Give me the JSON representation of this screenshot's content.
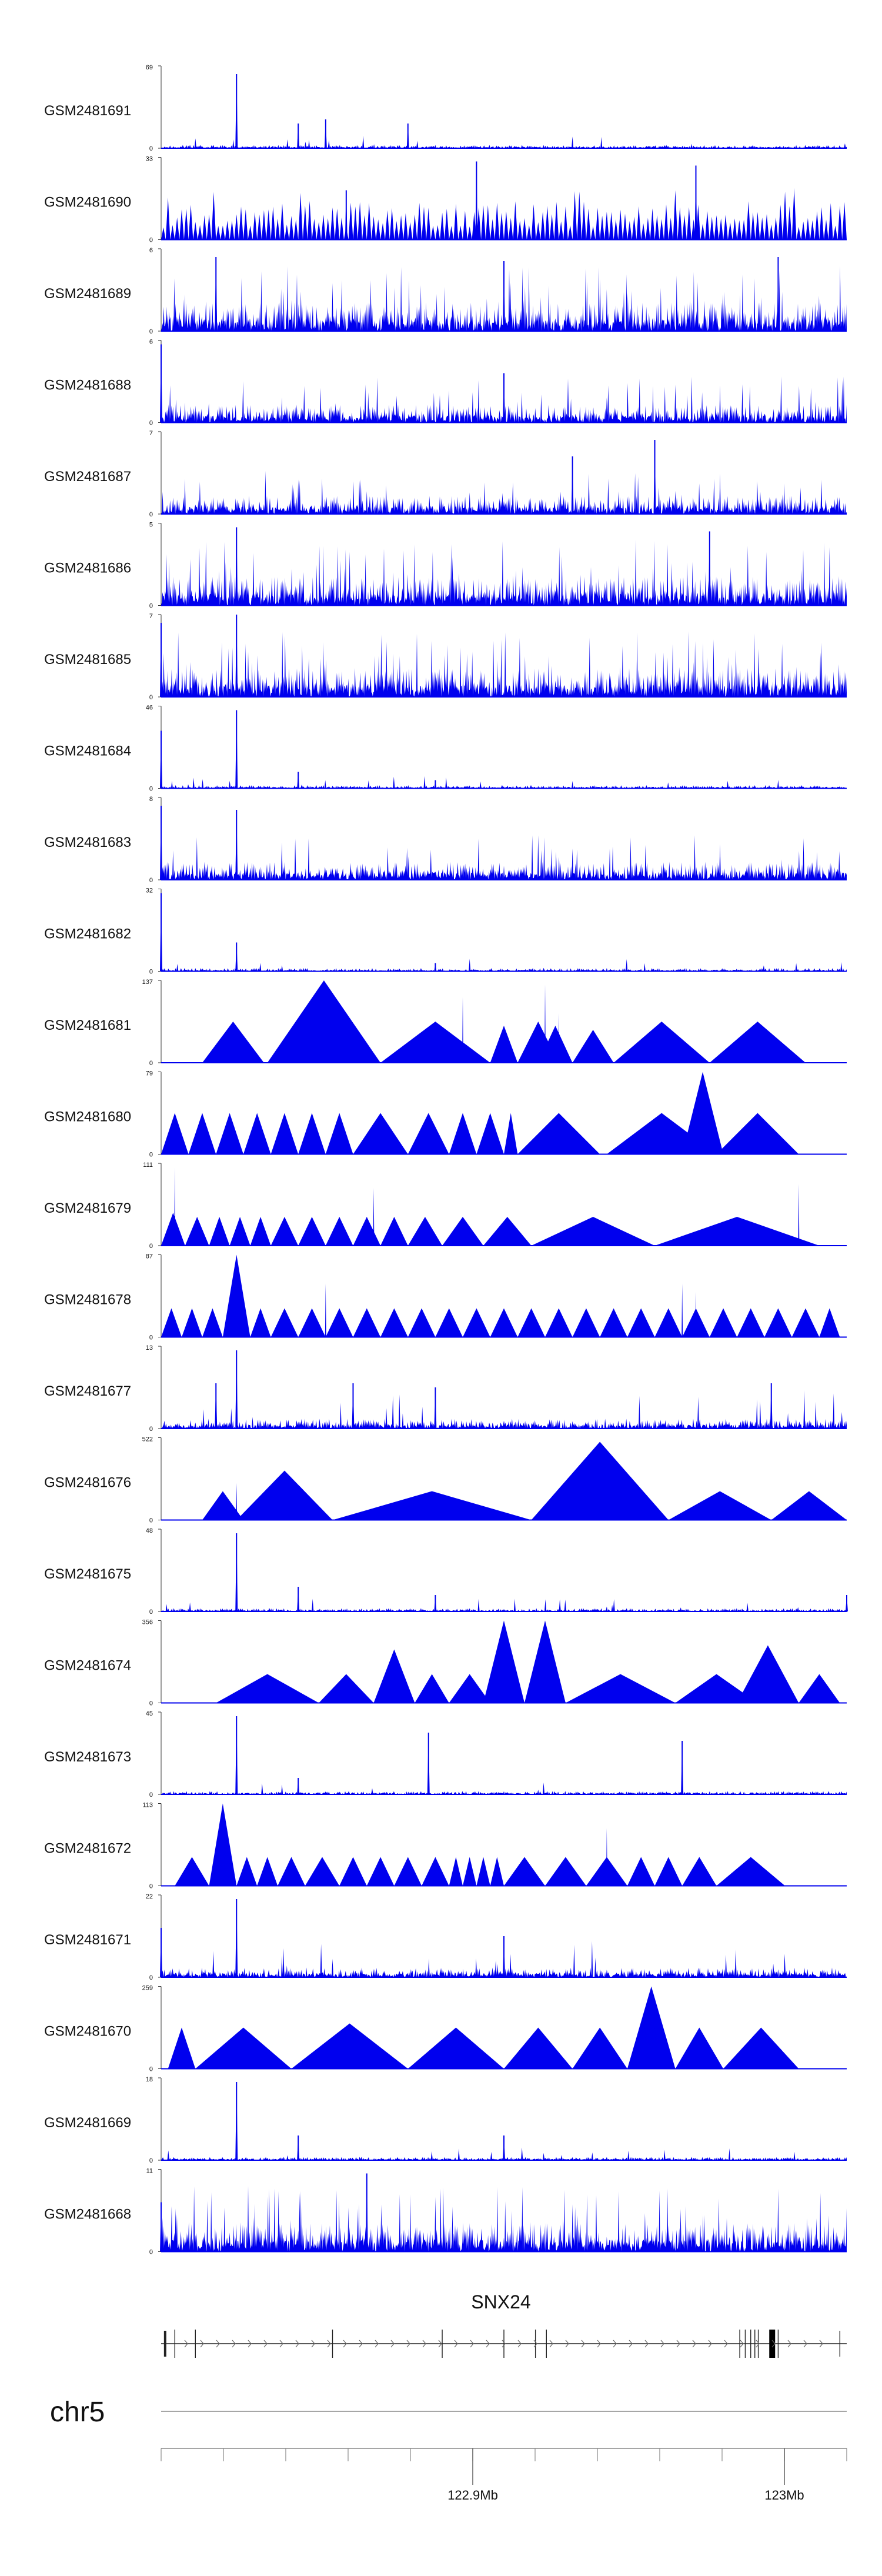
{
  "chart_data": {
    "type": "area",
    "chromosome": "chr5",
    "colors": {
      "signal": "#0000ee",
      "axis": "#333333",
      "gene": "#222222"
    },
    "x_range": [
      122.8,
      123.02
    ],
    "x_unit": "Mb",
    "x_ticks": [
      {
        "value": 122.9,
        "label": "122.9Mb"
      },
      {
        "value": 123.0,
        "label": "123Mb"
      }
    ],
    "gene": {
      "name": "SNX24"
    },
    "tracks": [
      {
        "name": "GSM2481691",
        "ymax": "69",
        "ymax_value": 69,
        "style": "spiky-sparse",
        "peaks": [
          [
            0.11,
            0.9
          ],
          [
            0.2,
            0.3
          ],
          [
            0.24,
            0.35
          ],
          [
            0.36,
            0.3
          ]
        ]
      },
      {
        "name": "GSM2481690",
        "ymax": "33",
        "ymax_value": 33,
        "style": "triangles-dense",
        "peaks": [
          [
            0.46,
            0.95
          ],
          [
            0.78,
            0.9
          ],
          [
            0.27,
            0.6
          ]
        ]
      },
      {
        "name": "GSM2481689",
        "ymax": "6",
        "ymax_value": 6,
        "style": "noise-dense",
        "peaks": [
          [
            0.08,
            0.9
          ],
          [
            0.5,
            0.85
          ],
          [
            0.9,
            0.9
          ]
        ]
      },
      {
        "name": "GSM2481688",
        "ymax": "6",
        "ymax_value": 6,
        "style": "noise-medium",
        "peaks": [
          [
            0.0,
            0.95
          ],
          [
            0.5,
            0.6
          ]
        ]
      },
      {
        "name": "GSM2481687",
        "ymax": "7",
        "ymax_value": 7,
        "style": "noise-medium",
        "peaks": [
          [
            0.72,
            0.9
          ],
          [
            0.6,
            0.7
          ]
        ]
      },
      {
        "name": "GSM2481686",
        "ymax": "5",
        "ymax_value": 5,
        "style": "noise-dense",
        "peaks": [
          [
            0.11,
            0.95
          ],
          [
            0.8,
            0.9
          ]
        ]
      },
      {
        "name": "GSM2481685",
        "ymax": "7",
        "ymax_value": 7,
        "style": "noise-dense",
        "peaks": [
          [
            0.11,
            1.0
          ],
          [
            0.0,
            0.9
          ]
        ]
      },
      {
        "name": "GSM2481684",
        "ymax": "46",
        "ymax_value": 46,
        "style": "spiky-sparse",
        "peaks": [
          [
            0.0,
            0.7
          ],
          [
            0.11,
            0.95
          ],
          [
            0.2,
            0.2
          ],
          [
            0.4,
            0.1
          ]
        ]
      },
      {
        "name": "GSM2481683",
        "ymax": "8",
        "ymax_value": 8,
        "style": "noise-medium",
        "peaks": [
          [
            0.0,
            0.9
          ],
          [
            0.11,
            0.85
          ]
        ]
      },
      {
        "name": "GSM2481682",
        "ymax": "32",
        "ymax_value": 32,
        "style": "spiky-sparse",
        "peaks": [
          [
            0.0,
            0.95
          ],
          [
            0.11,
            0.35
          ],
          [
            0.4,
            0.1
          ]
        ]
      },
      {
        "name": "GSM2481681",
        "ymax": "137",
        "ymax_value": 137,
        "style": "triangles",
        "tris": [
          [
            0.06,
            0.15,
            0.5
          ],
          [
            0.155,
            0.32,
            1.0
          ],
          [
            0.32,
            0.48,
            0.5
          ],
          [
            0.48,
            0.52,
            0.45
          ],
          [
            0.52,
            0.58,
            0.5
          ],
          [
            0.55,
            0.6,
            0.45
          ],
          [
            0.6,
            0.66,
            0.4
          ],
          [
            0.66,
            0.8,
            0.5
          ],
          [
            0.8,
            0.94,
            0.5
          ]
        ],
        "spikes": [
          [
            0.44,
            0.8
          ],
          [
            0.56,
            0.95
          ],
          [
            0.58,
            0.6
          ]
        ]
      },
      {
        "name": "GSM2481680",
        "ymax": "79",
        "ymax_value": 79,
        "style": "triangles",
        "tris": [
          [
            0.0,
            0.04,
            0.5
          ],
          [
            0.04,
            0.08,
            0.5
          ],
          [
            0.08,
            0.12,
            0.5
          ],
          [
            0.12,
            0.16,
            0.5
          ],
          [
            0.16,
            0.2,
            0.5
          ],
          [
            0.2,
            0.24,
            0.5
          ],
          [
            0.24,
            0.28,
            0.5
          ],
          [
            0.28,
            0.36,
            0.5
          ],
          [
            0.36,
            0.42,
            0.5
          ],
          [
            0.42,
            0.46,
            0.5
          ],
          [
            0.46,
            0.5,
            0.5
          ],
          [
            0.5,
            0.52,
            0.5
          ],
          [
            0.52,
            0.64,
            0.5
          ],
          [
            0.65,
            0.81,
            0.5
          ],
          [
            0.76,
            0.82,
            1.0
          ],
          [
            0.81,
            0.93,
            0.5
          ]
        ],
        "spikes": []
      },
      {
        "name": "GSM2481679",
        "ymax": "111",
        "ymax_value": 111,
        "style": "triangles",
        "tris": [
          [
            0.0,
            0.035,
            0.4
          ],
          [
            0.035,
            0.07,
            0.35
          ],
          [
            0.07,
            0.1,
            0.35
          ],
          [
            0.1,
            0.13,
            0.35
          ],
          [
            0.13,
            0.16,
            0.35
          ],
          [
            0.16,
            0.2,
            0.35
          ],
          [
            0.2,
            0.24,
            0.35
          ],
          [
            0.24,
            0.28,
            0.35
          ],
          [
            0.28,
            0.32,
            0.35
          ],
          [
            0.32,
            0.36,
            0.35
          ],
          [
            0.36,
            0.41,
            0.35
          ],
          [
            0.41,
            0.47,
            0.35
          ],
          [
            0.47,
            0.54,
            0.35
          ],
          [
            0.54,
            0.72,
            0.35
          ],
          [
            0.72,
            0.96,
            0.35
          ]
        ],
        "spikes": [
          [
            0.02,
            0.95
          ],
          [
            0.31,
            0.7
          ],
          [
            0.93,
            0.75
          ]
        ]
      },
      {
        "name": "GSM2481678",
        "ymax": "87",
        "ymax_value": 87,
        "style": "triangles",
        "tris": [
          [
            0.0,
            0.03,
            0.35
          ],
          [
            0.03,
            0.06,
            0.35
          ],
          [
            0.06,
            0.09,
            0.35
          ],
          [
            0.09,
            0.13,
            1.0
          ],
          [
            0.13,
            0.16,
            0.35
          ],
          [
            0.16,
            0.2,
            0.35
          ],
          [
            0.2,
            0.24,
            0.35
          ],
          [
            0.24,
            0.28,
            0.35
          ],
          [
            0.28,
            0.32,
            0.35
          ],
          [
            0.32,
            0.36,
            0.35
          ],
          [
            0.36,
            0.4,
            0.35
          ],
          [
            0.4,
            0.44,
            0.35
          ],
          [
            0.44,
            0.48,
            0.35
          ],
          [
            0.48,
            0.52,
            0.35
          ],
          [
            0.52,
            0.56,
            0.35
          ],
          [
            0.56,
            0.6,
            0.35
          ],
          [
            0.6,
            0.64,
            0.35
          ],
          [
            0.64,
            0.68,
            0.35
          ],
          [
            0.68,
            0.72,
            0.35
          ],
          [
            0.72,
            0.76,
            0.35
          ],
          [
            0.76,
            0.8,
            0.35
          ],
          [
            0.8,
            0.84,
            0.35
          ],
          [
            0.84,
            0.88,
            0.35
          ],
          [
            0.88,
            0.92,
            0.35
          ],
          [
            0.92,
            0.96,
            0.35
          ],
          [
            0.96,
            0.99,
            0.35
          ]
        ],
        "spikes": [
          [
            0.24,
            0.65
          ],
          [
            0.76,
            0.65
          ],
          [
            0.78,
            0.55
          ]
        ]
      },
      {
        "name": "GSM2481677",
        "ymax": "13",
        "ymax_value": 13,
        "style": "spiky-medium",
        "peaks": [
          [
            0.11,
            0.95
          ],
          [
            0.08,
            0.55
          ],
          [
            0.28,
            0.55
          ],
          [
            0.4,
            0.5
          ],
          [
            0.89,
            0.55
          ]
        ]
      },
      {
        "name": "GSM2481676",
        "ymax": "522",
        "ymax_value": 522,
        "style": "triangles",
        "tris": [
          [
            0.06,
            0.12,
            0.35
          ],
          [
            0.11,
            0.25,
            0.6
          ],
          [
            0.25,
            0.54,
            0.35
          ],
          [
            0.54,
            0.74,
            0.95
          ],
          [
            0.74,
            0.89,
            0.35
          ],
          [
            0.89,
            1.0,
            0.35
          ]
        ],
        "spikes": [
          [
            0.11,
            0.45
          ]
        ]
      },
      {
        "name": "GSM2481675",
        "ymax": "48",
        "ymax_value": 48,
        "style": "spiky-sparse",
        "peaks": [
          [
            0.11,
            0.95
          ],
          [
            0.2,
            0.3
          ],
          [
            0.4,
            0.2
          ],
          [
            1.0,
            0.2
          ]
        ]
      },
      {
        "name": "GSM2481674",
        "ymax": "356",
        "ymax_value": 356,
        "style": "triangles",
        "tris": [
          [
            0.08,
            0.23,
            0.35
          ],
          [
            0.23,
            0.31,
            0.35
          ],
          [
            0.31,
            0.37,
            0.65
          ],
          [
            0.37,
            0.42,
            0.35
          ],
          [
            0.42,
            0.48,
            0.35
          ],
          [
            0.47,
            0.53,
            1.0
          ],
          [
            0.53,
            0.59,
            1.0
          ],
          [
            0.59,
            0.75,
            0.35
          ],
          [
            0.75,
            0.87,
            0.35
          ],
          [
            0.84,
            0.93,
            0.7
          ],
          [
            0.93,
            0.99,
            0.35
          ]
        ],
        "spikes": []
      },
      {
        "name": "GSM2481673",
        "ymax": "45",
        "ymax_value": 45,
        "style": "spiky-sparse",
        "peaks": [
          [
            0.11,
            0.95
          ],
          [
            0.39,
            0.75
          ],
          [
            0.76,
            0.65
          ],
          [
            0.2,
            0.2
          ]
        ]
      },
      {
        "name": "GSM2481672",
        "ymax": "113",
        "ymax_value": 113,
        "style": "triangles",
        "tris": [
          [
            0.02,
            0.07,
            0.35
          ],
          [
            0.07,
            0.11,
            1.0
          ],
          [
            0.11,
            0.14,
            0.35
          ],
          [
            0.14,
            0.17,
            0.35
          ],
          [
            0.17,
            0.21,
            0.35
          ],
          [
            0.21,
            0.26,
            0.35
          ],
          [
            0.26,
            0.3,
            0.35
          ],
          [
            0.3,
            0.34,
            0.35
          ],
          [
            0.34,
            0.38,
            0.35
          ],
          [
            0.38,
            0.42,
            0.35
          ],
          [
            0.42,
            0.44,
            0.35
          ],
          [
            0.44,
            0.46,
            0.35
          ],
          [
            0.46,
            0.48,
            0.35
          ],
          [
            0.48,
            0.5,
            0.35
          ],
          [
            0.5,
            0.56,
            0.35
          ],
          [
            0.56,
            0.62,
            0.35
          ],
          [
            0.62,
            0.68,
            0.35
          ],
          [
            0.68,
            0.72,
            0.35
          ],
          [
            0.72,
            0.76,
            0.35
          ],
          [
            0.76,
            0.81,
            0.35
          ],
          [
            0.81,
            0.91,
            0.35
          ]
        ],
        "spikes": [
          [
            0.65,
            0.7
          ]
        ]
      },
      {
        "name": "GSM2481671",
        "ymax": "22",
        "ymax_value": 22,
        "style": "spiky-medium",
        "peaks": [
          [
            0.11,
            0.95
          ],
          [
            0.0,
            0.6
          ],
          [
            0.5,
            0.5
          ]
        ]
      },
      {
        "name": "GSM2481670",
        "ymax": "259",
        "ymax_value": 259,
        "style": "triangles",
        "tris": [
          [
            0.01,
            0.05,
            0.5
          ],
          [
            0.05,
            0.19,
            0.5
          ],
          [
            0.19,
            0.36,
            0.55
          ],
          [
            0.36,
            0.5,
            0.5
          ],
          [
            0.5,
            0.6,
            0.5
          ],
          [
            0.6,
            0.68,
            0.5
          ],
          [
            0.68,
            0.75,
            1.0
          ],
          [
            0.75,
            0.82,
            0.5
          ],
          [
            0.82,
            0.93,
            0.5
          ]
        ],
        "spikes": [
          [
            0.43,
            0.4
          ]
        ]
      },
      {
        "name": "GSM2481669",
        "ymax": "18",
        "ymax_value": 18,
        "style": "spiky-sparse",
        "peaks": [
          [
            0.11,
            0.95
          ],
          [
            0.2,
            0.3
          ],
          [
            0.5,
            0.3
          ]
        ]
      },
      {
        "name": "GSM2481668",
        "ymax": "11",
        "ymax_value": 11,
        "style": "noise-dense",
        "peaks": [
          [
            0.3,
            0.95
          ],
          [
            0.0,
            0.6
          ]
        ]
      }
    ]
  }
}
